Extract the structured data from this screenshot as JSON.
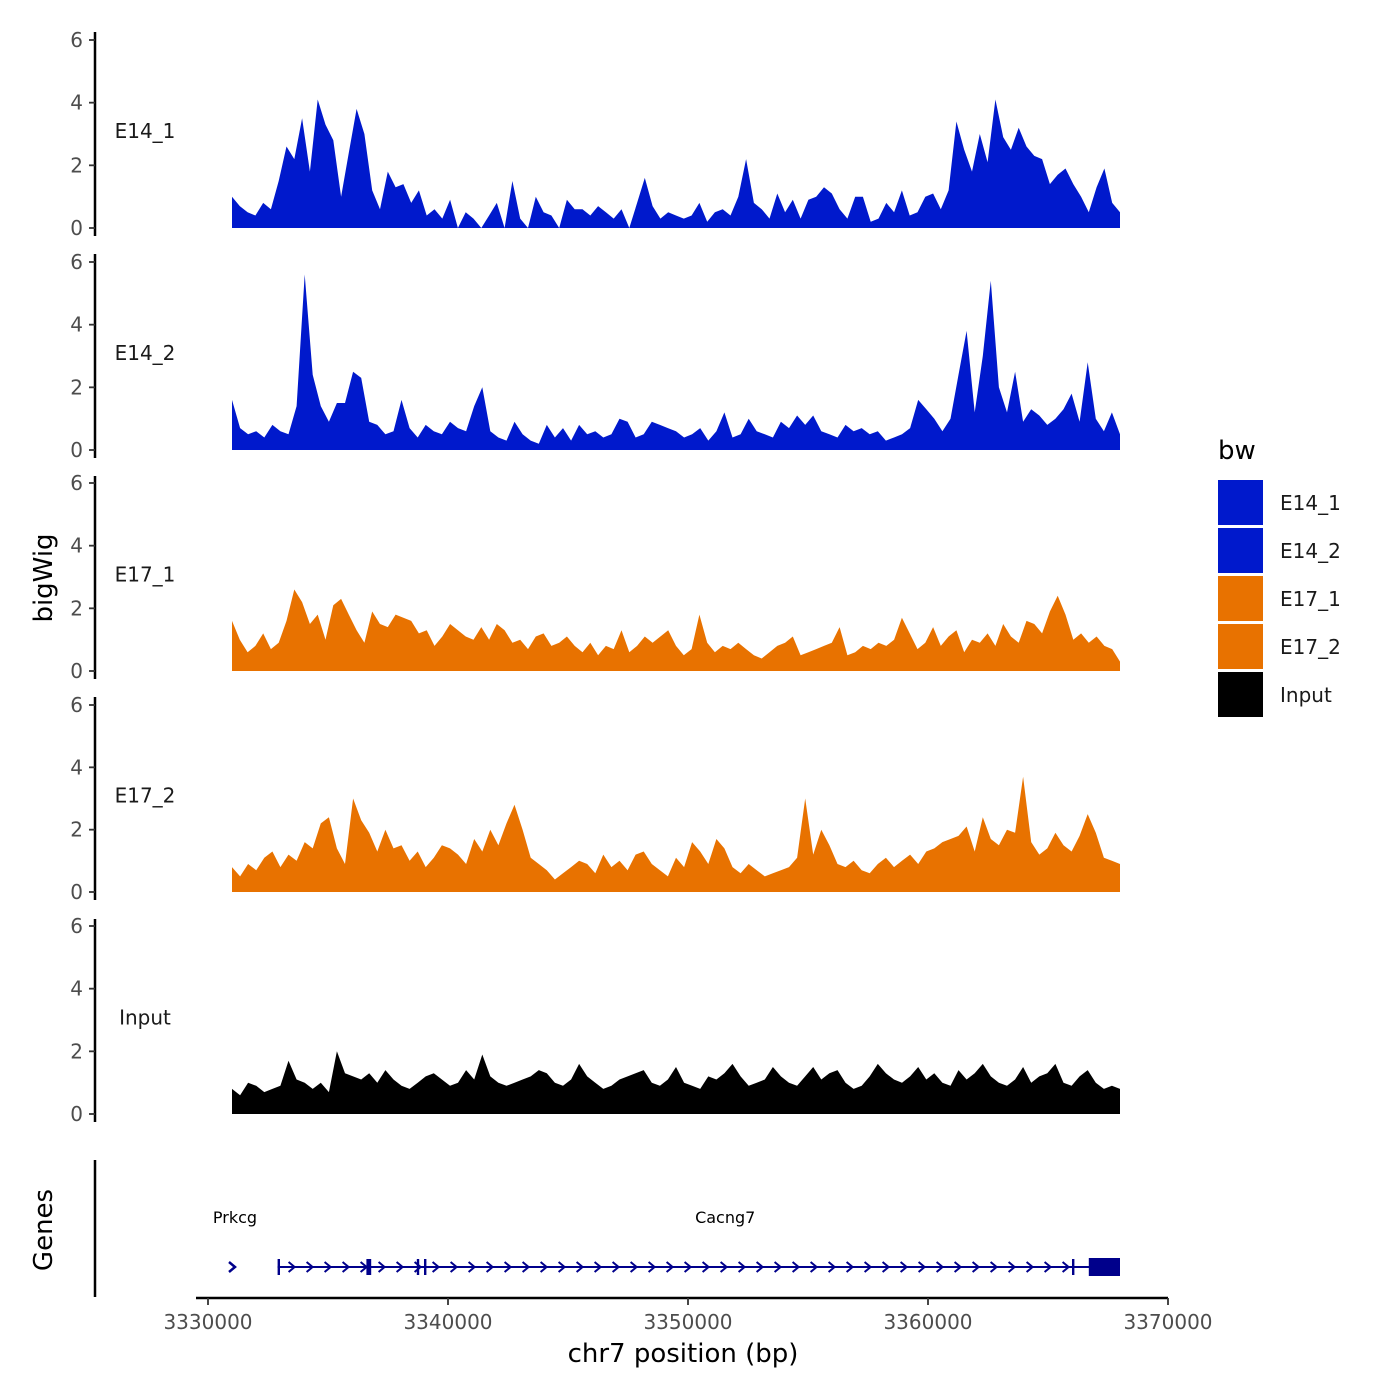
{
  "chart_data": {
    "type": "area",
    "ylabel": "bigWig",
    "gene_panel_label": "Genes",
    "xlabel": "chr7 position (bp)",
    "xlim": [
      3329500,
      3370000
    ],
    "ylim": [
      0,
      6
    ],
    "region": [
      3331000,
      3368000
    ],
    "y_ticks": [
      "0",
      "2",
      "4",
      "6"
    ],
    "x_ticks": [
      {
        "value": 3330000,
        "label": "3330000"
      },
      {
        "value": 3340000,
        "label": "3340000"
      },
      {
        "value": 3350000,
        "label": "3350000"
      },
      {
        "value": 3360000,
        "label": "3360000"
      },
      {
        "value": 3370000,
        "label": "3370000"
      }
    ],
    "tracks": [
      {
        "name": "E14_1",
        "color": "#0019cc",
        "values": [
          1.0,
          0.7,
          0.5,
          0.4,
          0.8,
          0.6,
          1.5,
          2.6,
          2.2,
          3.5,
          1.8,
          4.1,
          3.3,
          2.8,
          1.0,
          2.4,
          3.8,
          3.0,
          1.2,
          0.6,
          1.8,
          1.3,
          1.4,
          0.8,
          1.2,
          0.4,
          0.6,
          0.3,
          0.9,
          0.0,
          0.5,
          0.3,
          0.0,
          0.4,
          0.8,
          0.0,
          1.5,
          0.3,
          0.0,
          1.0,
          0.5,
          0.4,
          0.0,
          0.9,
          0.6,
          0.6,
          0.4,
          0.7,
          0.5,
          0.3,
          0.6,
          0.0,
          0.8,
          1.6,
          0.7,
          0.3,
          0.5,
          0.4,
          0.3,
          0.4,
          0.8,
          0.2,
          0.5,
          0.6,
          0.4,
          1.0,
          2.2,
          0.8,
          0.6,
          0.3,
          1.1,
          0.5,
          0.9,
          0.3,
          0.9,
          1.0,
          1.3,
          1.1,
          0.6,
          0.3,
          1.0,
          1.0,
          0.2,
          0.3,
          0.8,
          0.5,
          1.2,
          0.4,
          0.5,
          1.0,
          1.1,
          0.6,
          1.2,
          3.4,
          2.5,
          1.8,
          3.0,
          2.1,
          4.1,
          2.9,
          2.5,
          3.2,
          2.6,
          2.3,
          2.2,
          1.4,
          1.7,
          1.9,
          1.4,
          1.0,
          0.5,
          1.3,
          1.9,
          0.8,
          0.5
        ]
      },
      {
        "name": "E14_2",
        "color": "#0019cc",
        "values": [
          1.6,
          0.7,
          0.5,
          0.6,
          0.4,
          0.8,
          0.6,
          0.5,
          1.4,
          5.6,
          2.4,
          1.4,
          0.9,
          1.5,
          1.5,
          2.5,
          2.3,
          0.9,
          0.8,
          0.5,
          0.6,
          1.6,
          0.7,
          0.4,
          0.8,
          0.6,
          0.5,
          0.9,
          0.7,
          0.6,
          1.4,
          2.0,
          0.6,
          0.4,
          0.3,
          0.9,
          0.5,
          0.3,
          0.2,
          0.8,
          0.4,
          0.7,
          0.3,
          0.8,
          0.5,
          0.6,
          0.4,
          0.5,
          1.0,
          0.9,
          0.4,
          0.5,
          0.9,
          0.8,
          0.7,
          0.6,
          0.4,
          0.5,
          0.7,
          0.3,
          0.6,
          1.2,
          0.4,
          0.5,
          1.0,
          0.6,
          0.5,
          0.4,
          0.9,
          0.7,
          1.1,
          0.8,
          1.1,
          0.6,
          0.5,
          0.4,
          0.8,
          0.6,
          0.7,
          0.5,
          0.6,
          0.3,
          0.4,
          0.5,
          0.7,
          1.6,
          1.3,
          1.0,
          0.6,
          1.0,
          2.4,
          3.8,
          1.2,
          3.0,
          5.4,
          2.0,
          1.2,
          2.5,
          0.9,
          1.3,
          1.1,
          0.8,
          1.0,
          1.3,
          1.8,
          0.9,
          2.8,
          1.0,
          0.6,
          1.2,
          0.5
        ]
      },
      {
        "name": "E17_1",
        "color": "#e87200",
        "values": [
          1.6,
          1.0,
          0.6,
          0.8,
          1.2,
          0.7,
          0.9,
          1.6,
          2.6,
          2.2,
          1.5,
          1.8,
          1.0,
          2.1,
          2.3,
          1.8,
          1.3,
          0.9,
          1.9,
          1.5,
          1.4,
          1.8,
          1.7,
          1.6,
          1.2,
          1.3,
          0.8,
          1.1,
          1.5,
          1.3,
          1.1,
          1.0,
          1.4,
          1.0,
          1.5,
          1.3,
          0.9,
          1.0,
          0.7,
          1.1,
          1.2,
          0.8,
          0.9,
          1.1,
          0.8,
          0.6,
          0.9,
          0.5,
          0.8,
          0.7,
          1.3,
          0.6,
          0.8,
          1.1,
          0.9,
          1.1,
          1.3,
          0.8,
          0.5,
          0.7,
          1.8,
          0.9,
          0.6,
          0.8,
          0.7,
          0.9,
          0.7,
          0.5,
          0.4,
          0.6,
          0.8,
          0.9,
          1.1,
          0.5,
          0.6,
          0.7,
          0.8,
          0.9,
          1.4,
          0.5,
          0.6,
          0.8,
          0.7,
          0.9,
          0.8,
          1.0,
          1.7,
          1.2,
          0.7,
          0.9,
          1.4,
          0.8,
          1.1,
          1.3,
          0.6,
          1.0,
          0.9,
          1.2,
          0.8,
          1.5,
          1.1,
          0.9,
          1.6,
          1.5,
          1.2,
          1.9,
          2.4,
          1.8,
          1.0,
          1.2,
          0.9,
          1.1,
          0.8,
          0.7,
          0.3
        ]
      },
      {
        "name": "E17_2",
        "color": "#e87200",
        "values": [
          0.8,
          0.5,
          0.9,
          0.7,
          1.1,
          1.3,
          0.8,
          1.2,
          1.0,
          1.6,
          1.4,
          2.2,
          2.4,
          1.4,
          0.9,
          3.0,
          2.3,
          1.9,
          1.3,
          2.0,
          1.4,
          1.5,
          1.0,
          1.3,
          0.8,
          1.1,
          1.5,
          1.4,
          1.2,
          0.9,
          1.7,
          1.3,
          2.0,
          1.5,
          2.2,
          2.8,
          2.0,
          1.1,
          0.9,
          0.7,
          0.4,
          0.6,
          0.8,
          1.0,
          0.9,
          0.6,
          1.2,
          0.8,
          1.0,
          0.7,
          1.2,
          1.3,
          0.9,
          0.7,
          0.5,
          1.1,
          0.8,
          1.6,
          1.3,
          0.9,
          1.7,
          1.4,
          0.8,
          0.6,
          0.9,
          0.7,
          0.5,
          0.6,
          0.7,
          0.8,
          1.1,
          3.0,
          1.2,
          2.0,
          1.5,
          0.9,
          0.8,
          1.0,
          0.7,
          0.6,
          0.9,
          1.1,
          0.8,
          1.0,
          1.2,
          0.9,
          1.3,
          1.4,
          1.6,
          1.7,
          1.8,
          2.1,
          1.3,
          2.4,
          1.7,
          1.5,
          2.0,
          1.9,
          3.7,
          1.6,
          1.2,
          1.4,
          1.9,
          1.5,
          1.3,
          1.8,
          2.5,
          1.9,
          1.1,
          1.0,
          0.9
        ]
      },
      {
        "name": "Input",
        "color": "#000000",
        "values": [
          0.8,
          0.6,
          1.0,
          0.9,
          0.7,
          0.8,
          0.9,
          1.7,
          1.1,
          1.0,
          0.8,
          1.0,
          0.7,
          2.0,
          1.3,
          1.2,
          1.1,
          1.3,
          1.0,
          1.4,
          1.1,
          0.9,
          0.8,
          1.0,
          1.2,
          1.3,
          1.1,
          0.9,
          1.0,
          1.4,
          1.1,
          1.9,
          1.2,
          1.0,
          0.9,
          1.0,
          1.1,
          1.2,
          1.4,
          1.3,
          1.0,
          0.9,
          1.1,
          1.6,
          1.2,
          1.0,
          0.8,
          0.9,
          1.1,
          1.2,
          1.3,
          1.4,
          1.0,
          0.9,
          1.1,
          1.5,
          1.0,
          0.9,
          0.8,
          1.2,
          1.1,
          1.3,
          1.6,
          1.2,
          0.9,
          1.0,
          1.1,
          1.5,
          1.2,
          1.0,
          0.9,
          1.2,
          1.5,
          1.1,
          1.3,
          1.4,
          1.0,
          0.8,
          0.9,
          1.2,
          1.6,
          1.3,
          1.1,
          1.0,
          1.2,
          1.5,
          1.1,
          1.3,
          1.0,
          0.9,
          1.4,
          1.1,
          1.3,
          1.6,
          1.2,
          1.0,
          0.9,
          1.1,
          1.5,
          1.0,
          1.2,
          1.3,
          1.6,
          1.0,
          0.9,
          1.2,
          1.4,
          1.0,
          0.8,
          0.9,
          0.8
        ]
      }
    ],
    "legend": {
      "title": "bw",
      "items": [
        {
          "label": "E14_1",
          "color": "#0019cc"
        },
        {
          "label": "E14_2",
          "color": "#0019cc"
        },
        {
          "label": "E17_1",
          "color": "#e87200"
        },
        {
          "label": "E17_2",
          "color": "#e87200"
        },
        {
          "label": "Input",
          "color": "#000000"
        }
      ]
    },
    "genes": [
      {
        "name": "Prkcg",
        "start": 3331000,
        "end": 3331200,
        "strand": "+",
        "label_pos": 3331000,
        "exons": []
      },
      {
        "name": "Cacng7",
        "start": 3332900,
        "end": 3368000,
        "strand": "+",
        "label_pos": 3350800,
        "exons": [
          [
            3332900,
            3333000
          ],
          [
            3336600,
            3336800
          ],
          [
            3338700,
            3338800
          ],
          [
            3339000,
            3339100
          ],
          [
            3366000,
            3366100
          ],
          [
            3366700,
            3368000
          ]
        ]
      }
    ],
    "gene_color": "#00008b"
  }
}
